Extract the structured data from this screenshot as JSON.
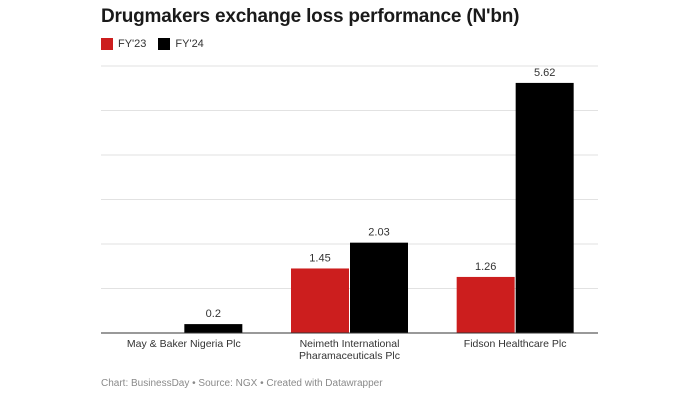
{
  "chart_data": {
    "type": "bar",
    "title": "Drugmakers exchange loss performance (N'bn)",
    "categories": [
      [
        "May & Baker Nigeria Plc"
      ],
      [
        "Neimeth International",
        "Pharamaceuticals Plc"
      ],
      [
        "Fidson Healthcare Plc"
      ]
    ],
    "series": [
      {
        "name": "FY'23",
        "color": "#cc1e1e",
        "values": [
          null,
          1.45,
          1.26
        ],
        "labels": [
          "",
          "1.45",
          "1.26"
        ]
      },
      {
        "name": "FY'24",
        "color": "#000000",
        "values": [
          0.2,
          2.03,
          5.62
        ],
        "labels": [
          "0.2",
          "2.03",
          "5.62"
        ]
      }
    ],
    "ylim": [
      0,
      6
    ],
    "grid": true,
    "legend": "top-left",
    "footer": "Chart: BusinessDay • Source: NGX • Created with Datawrapper"
  }
}
